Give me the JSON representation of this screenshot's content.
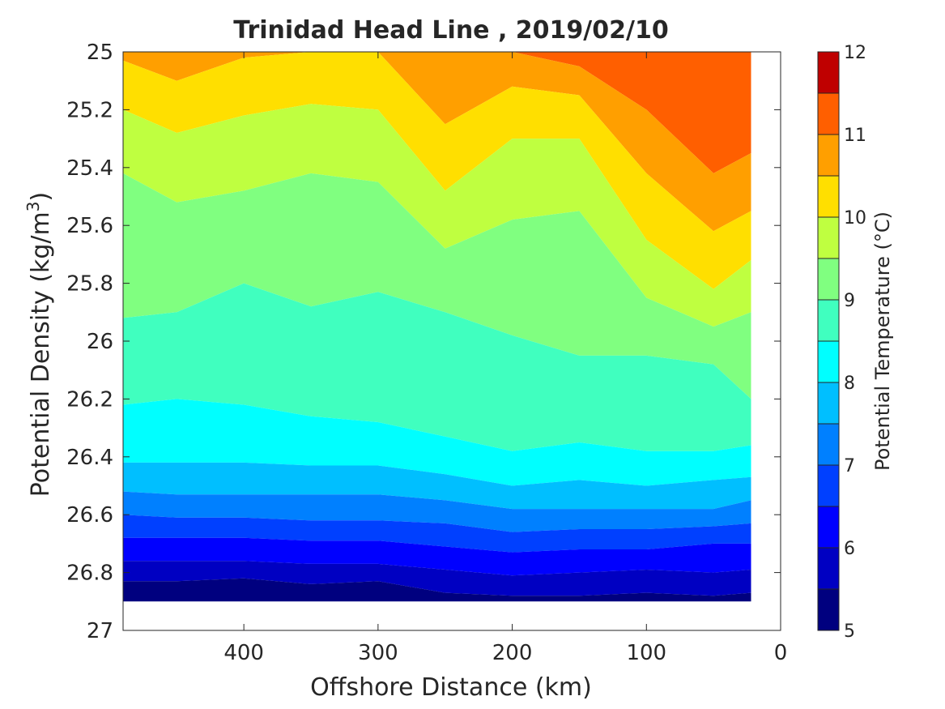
{
  "chart_data": {
    "type": "heatmap",
    "title": "Trinidad Head Line , 2019/02/10",
    "xlabel": "Offshore Distance (km)",
    "ylabel_prefix": "Potential Density (kg/m",
    "ylabel_sup": "3",
    "ylabel_suffix": ")",
    "xlim": [
      490,
      0
    ],
    "ylim": [
      25,
      27
    ],
    "x_reversed": true,
    "y_reversed": true,
    "xticks": [
      400,
      300,
      200,
      100,
      0
    ],
    "yticks": [
      "25",
      "25.2",
      "25.4",
      "25.6",
      "25.8",
      "26",
      "26.2",
      "26.4",
      "26.6",
      "26.8",
      "27"
    ],
    "colorbar": {
      "label": "Potential Temperature (°C)",
      "range": [
        5,
        12
      ],
      "ticks": [
        "5",
        "6",
        "7",
        "8",
        "9",
        "10",
        "11",
        "12"
      ],
      "levels": [
        5,
        5.5,
        6,
        6.5,
        7,
        7.5,
        8,
        8.5,
        9,
        9.5,
        10,
        10.5,
        11,
        11.5
      ],
      "colors": [
        "#00007f",
        "#0000c2",
        "#0000ff",
        "#0040ff",
        "#0080ff",
        "#00bfff",
        "#00ffff",
        "#40ffbf",
        "#80ff80",
        "#bfff40",
        "#ffdf00",
        "#ff9f00",
        "#ff5f00",
        "#ff1f00",
        "#bf0000"
      ]
    },
    "contour_isopycnals": {
      "x_km": [
        490,
        450,
        400,
        350,
        300,
        250,
        200,
        150,
        100,
        50,
        22
      ],
      "t11_5": [
        25.0,
        25.0,
        25.0,
        25.0,
        25.0,
        25.0,
        25.0,
        25.05,
        25.2,
        25.42,
        25.35
      ],
      "t11": [
        25.03,
        25.1,
        25.02,
        25.0,
        25.0,
        25.25,
        25.12,
        25.15,
        25.42,
        25.62,
        25.55
      ],
      "t10_5": [
        25.2,
        25.28,
        25.22,
        25.18,
        25.2,
        25.48,
        25.3,
        25.3,
        25.65,
        25.82,
        25.72
      ],
      "t10": [
        25.42,
        25.52,
        25.48,
        25.42,
        25.45,
        25.68,
        25.58,
        25.55,
        25.85,
        25.95,
        25.9
      ],
      "t9_5": [
        25.92,
        25.9,
        25.8,
        25.88,
        25.83,
        25.9,
        25.98,
        26.05,
        26.05,
        26.08,
        26.2
      ],
      "t9": [
        26.22,
        26.2,
        26.22,
        26.26,
        26.28,
        26.33,
        26.38,
        26.35,
        26.38,
        26.38,
        26.36
      ],
      "t8_5": [
        26.42,
        26.42,
        26.42,
        26.43,
        26.43,
        26.46,
        26.5,
        26.48,
        26.5,
        26.48,
        26.47
      ],
      "t8": [
        26.52,
        26.53,
        26.53,
        26.53,
        26.53,
        26.55,
        26.58,
        26.58,
        26.58,
        26.58,
        26.55
      ],
      "t7_5": [
        26.6,
        26.61,
        26.61,
        26.62,
        26.62,
        26.63,
        26.66,
        26.65,
        26.65,
        26.64,
        26.63
      ],
      "t7": [
        26.68,
        26.68,
        26.68,
        26.69,
        26.69,
        26.71,
        26.73,
        26.72,
        26.72,
        26.7,
        26.7
      ],
      "t6_5": [
        26.76,
        26.76,
        26.76,
        26.77,
        26.77,
        26.79,
        26.81,
        26.8,
        26.79,
        26.8,
        26.79
      ],
      "t6": [
        26.83,
        26.83,
        26.82,
        26.84,
        26.83,
        26.87,
        26.88,
        26.88,
        26.87,
        26.88,
        26.87
      ],
      "bottom": [
        26.9,
        26.9,
        26.9,
        26.9,
        26.9,
        26.9,
        26.9,
        26.9,
        26.9,
        26.9,
        26.9
      ]
    }
  }
}
